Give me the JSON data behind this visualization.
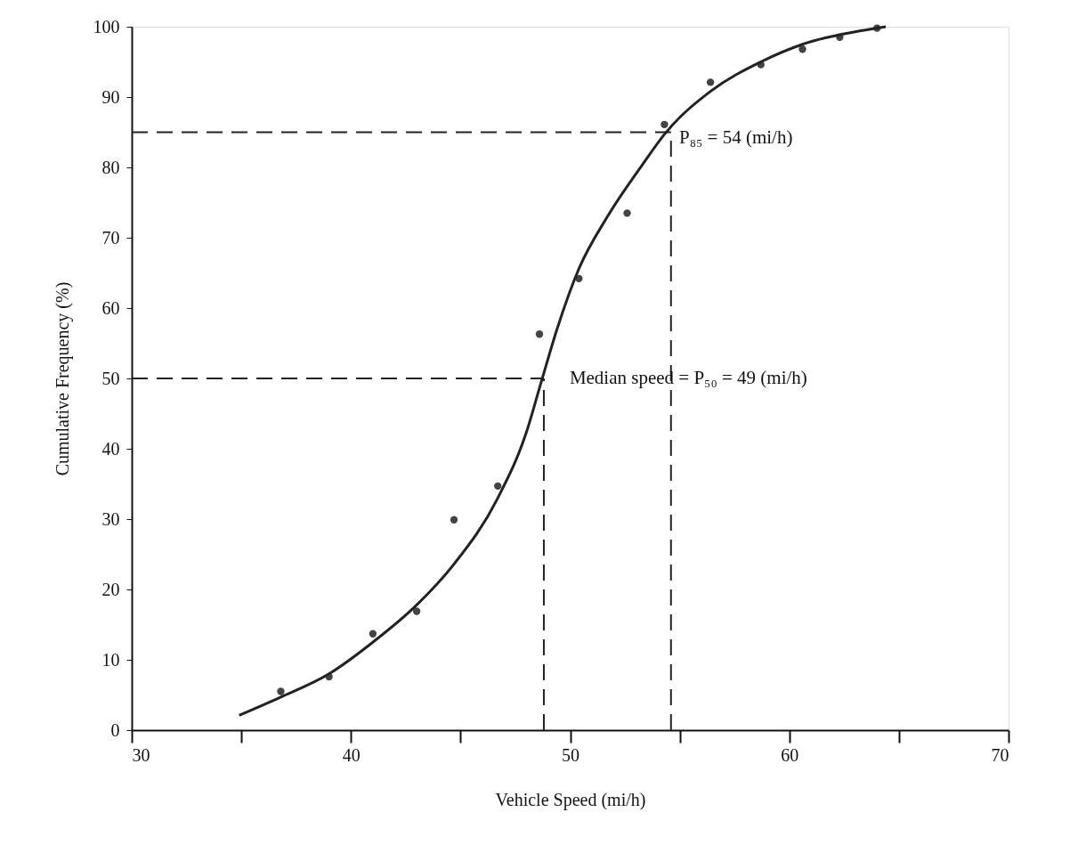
{
  "chart_data": {
    "type": "scatter",
    "xlabel": "Vehicle Speed (mi/h)",
    "ylabel": "Cumulative Frequency (%)",
    "xlim": [
      30,
      70
    ],
    "ylim": [
      0,
      100
    ],
    "xticks": [
      30,
      {
        "value": 35,
        "label": null
      },
      40,
      {
        "value": 45,
        "label": null
      },
      50,
      {
        "value": 55,
        "label": null
      },
      60,
      {
        "value": 65,
        "label": null
      },
      70
    ],
    "yticks": [
      0,
      10,
      20,
      30,
      40,
      50,
      60,
      70,
      80,
      90,
      100
    ],
    "grid": false,
    "series": [
      {
        "marker": "circle",
        "color": "#444444",
        "x": [
          36.8,
          39.0,
          41.0,
          43.0,
          44.7,
          46.7,
          48.6,
          50.4,
          52.6,
          54.3,
          56.4,
          58.7,
          60.6,
          62.3,
          64.0
        ],
        "values": [
          5.5,
          7.6,
          13.7,
          16.9,
          29.9,
          34.7,
          56.3,
          64.2,
          73.5,
          86.1,
          92.1,
          94.6,
          96.8,
          98.5,
          99.8
        ]
      },
      {
        "type": "line",
        "marker": "none",
        "line_style": "solid",
        "color": "#222222",
        "x": [
          34.9,
          36.8,
          39.0,
          41.0,
          43.0,
          44.7,
          46.7,
          48.0,
          48.7,
          49.4,
          50.4,
          51.7,
          53.3,
          54.3,
          56.4,
          58.7,
          60.6,
          63.4,
          64.4
        ],
        "values": [
          2.1,
          4.7,
          8.0,
          12.5,
          17.8,
          23.6,
          33.0,
          42.3,
          49.7,
          57.0,
          65.6,
          73.0,
          80.4,
          84.7,
          90.8,
          95.0,
          97.5,
          99.5,
          100
        ]
      },
      {
        "type": "line",
        "marker": "none",
        "line_style": "dashed",
        "color": "#222222",
        "x": [
          30,
          54.6
        ],
        "values": [
          85,
          85
        ]
      },
      {
        "type": "line",
        "marker": "none",
        "line_style": "dashed",
        "color": "#222222",
        "x": [
          54.6,
          54.6
        ],
        "values": [
          0,
          85
        ]
      },
      {
        "type": "line",
        "marker": "none",
        "line_style": "dashed",
        "color": "#222222",
        "x": [
          30,
          48.8
        ],
        "values": [
          50,
          50
        ]
      },
      {
        "type": "line",
        "marker": "none",
        "line_style": "dashed",
        "color": "#222222",
        "x": [
          48.8,
          48.8
        ],
        "values": [
          0,
          50
        ]
      }
    ],
    "annotations": [
      {
        "text": "P₈₅ = 54 (mi/h)",
        "x": 54,
        "y": 85
      },
      {
        "text": "Median speed = P₅₀ = 49 (mi/h)",
        "x": 49,
        "y": 50
      }
    ]
  }
}
